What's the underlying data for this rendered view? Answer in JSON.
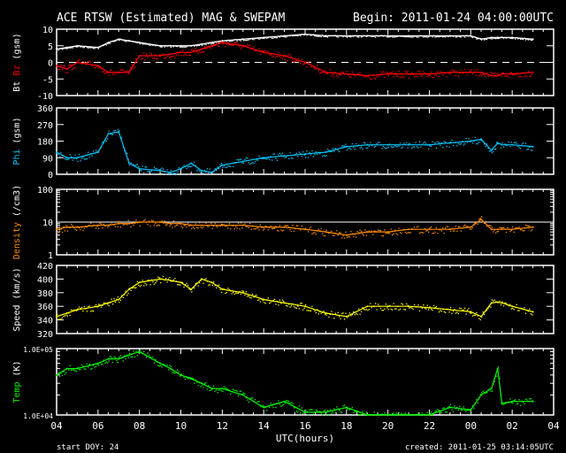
{
  "header": {
    "title": "ACE RTSW (Estimated) MAG & SWEPAM",
    "begin": "Begin: 2011-01-24 04:00:00UTC"
  },
  "footer": {
    "start_doy": "start DOY:  24",
    "created": "created: 2011-01-25 03:14:05UTC"
  },
  "colors": {
    "bt": "#ffffff",
    "bz": "#ff0000",
    "phi": "#00c8ff",
    "density": "#ff8c00",
    "speed": "#ffff00",
    "temp": "#00ff00"
  },
  "chart_data": {
    "type": "scatter",
    "xlabel": "UTC(hours)",
    "x_ticks": [
      "04",
      "06",
      "08",
      "10",
      "12",
      "14",
      "16",
      "18",
      "20",
      "22",
      "00",
      "02",
      "04"
    ],
    "x_range_hours": [
      0,
      24
    ],
    "x_hours": [
      0,
      0.5,
      1,
      2,
      2.5,
      3,
      3.5,
      4,
      5,
      5.5,
      6,
      6.5,
      7,
      7.5,
      8,
      9,
      10,
      11,
      12,
      13,
      14,
      15,
      16,
      17,
      18,
      19,
      20,
      20.5,
      21,
      21.3,
      21.5,
      22,
      23
    ],
    "panels": [
      {
        "id": "mag",
        "ylabel_parts": [
          "Bt",
          "Bz",
          "(gsm)"
        ],
        "ylim": [
          -10,
          10
        ],
        "scale": "linear",
        "y_ticks": [
          "10",
          "5",
          "0",
          "-5",
          "-10"
        ],
        "zero_line": 0,
        "series": [
          {
            "name": "Bt",
            "color_key": "bt",
            "values": [
              4,
              4.5,
              5,
              4.5,
              6,
              7,
              6.5,
              6,
              5,
              5,
              5,
              5,
              5.5,
              6,
              6.5,
              7,
              7.5,
              8,
              8.5,
              8,
              8,
              8,
              8,
              8,
              8,
              8,
              8,
              7,
              7.5,
              7.5,
              7.5,
              7.5,
              7
            ]
          },
          {
            "name": "Bz",
            "color_key": "bz",
            "values": [
              -1,
              -2,
              0,
              -1,
              -3,
              -3,
              -3,
              2,
              2,
              2.5,
              3,
              3,
              4,
              5,
              6,
              5,
              3,
              2,
              0,
              -3,
              -3.5,
              -4,
              -3.5,
              -3.5,
              -3.5,
              -3,
              -3,
              -3,
              -4,
              -4,
              -3.5,
              -3.5,
              -3
            ]
          }
        ]
      },
      {
        "id": "phi",
        "ylabel_parts": [
          "Phi",
          "(gsm)"
        ],
        "ylim": [
          0,
          360
        ],
        "scale": "linear",
        "y_ticks": [
          "360",
          "270",
          "180",
          "90",
          "0"
        ],
        "series": [
          {
            "name": "Phi",
            "color_key": "phi",
            "values": [
              120,
              90,
              90,
              120,
              220,
              230,
              60,
              30,
              20,
              10,
              30,
              60,
              20,
              10,
              50,
              70,
              90,
              100,
              110,
              120,
              150,
              160,
              160,
              160,
              160,
              170,
              180,
              190,
              130,
              170,
              160,
              160,
              150
            ]
          }
        ]
      },
      {
        "id": "density",
        "ylabel_parts": [
          "Density",
          "(/cm3)"
        ],
        "ylim": [
          1,
          100
        ],
        "scale": "log",
        "y_ticks": [
          "100",
          "10",
          "1"
        ],
        "ref_line": 10,
        "series": [
          {
            "name": "Density",
            "color_key": "density",
            "values": [
              6,
              7,
              7,
              8,
              8,
              9,
              9,
              10,
              10,
              9,
              9,
              8,
              8,
              8,
              8,
              8,
              7,
              7,
              6,
              5,
              4,
              5,
              5,
              6,
              6,
              6,
              7,
              12,
              6,
              6,
              6,
              6,
              7
            ]
          }
        ]
      },
      {
        "id": "speed",
        "ylabel_parts": [
          "Speed",
          "(km/s)"
        ],
        "ylim": [
          320,
          420
        ],
        "scale": "linear",
        "y_ticks": [
          "420",
          "400",
          "380",
          "360",
          "340",
          "320"
        ],
        "series": [
          {
            "name": "Speed",
            "color_key": "speed",
            "values": [
              345,
              350,
              355,
              360,
              365,
              370,
              385,
              395,
              400,
              398,
              395,
              385,
              400,
              395,
              385,
              380,
              370,
              365,
              360,
              350,
              345,
              360,
              360,
              360,
              358,
              355,
              352,
              345,
              365,
              366,
              365,
              360,
              352
            ]
          }
        ]
      },
      {
        "id": "temp",
        "ylabel_parts": [
          "Temp",
          "(K)"
        ],
        "ylim": [
          10000,
          100000
        ],
        "scale": "log",
        "y_ticks": [
          "1.0E+05",
          "1.0E+04"
        ],
        "series": [
          {
            "name": "Temp",
            "color_key": "temp",
            "values": [
              40000,
              50000,
              50000,
              60000,
              70000,
              70000,
              80000,
              90000,
              60000,
              50000,
              40000,
              35000,
              30000,
              25000,
              25000,
              20000,
              13000,
              16000,
              11000,
              11000,
              13000,
              10000,
              10000,
              10000,
              10000,
              13000,
              12000,
              20000,
              25000,
              50000,
              15000,
              16000,
              16000
            ]
          }
        ]
      }
    ]
  }
}
